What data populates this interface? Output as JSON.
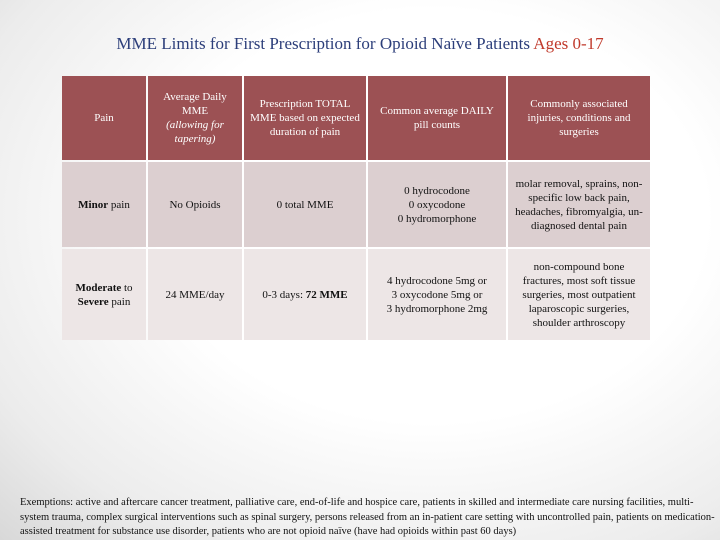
{
  "title": {
    "main": "MME Limits for First Prescription for Opioid Naïve Patients",
    "accent": "Ages 0-17"
  },
  "table": {
    "headers": [
      {
        "l1": "Pain"
      },
      {
        "l1": "Average Daily MME",
        "l2": "(allowing for tapering)"
      },
      {
        "l1": "Prescription TOTAL MME based on expected duration of pain"
      },
      {
        "l1": "Common average DAILY pill counts"
      },
      {
        "l1": "Commonly associated injuries, conditions and surgeries"
      }
    ],
    "rows": [
      {
        "pain_bold": "Minor",
        "pain_rest": " pain",
        "daily": "No Opioids",
        "total_pre": "0 total MME",
        "total_bold": "",
        "pills": "0 hydrocodone\n0 oxycodone\n0 hydromorphone",
        "conditions": "molar removal, sprains, non-specific low back pain, headaches, fibromyalgia, un-diagnosed dental pain"
      },
      {
        "pain_bold": "Moderate",
        "pain_rest": " to ",
        "pain_bold2": "Severe",
        "pain_rest2": " pain",
        "daily": "24 MME/day",
        "total_pre": "0-3 days: ",
        "total_bold": "72 MME",
        "pills": "4 hydrocodone 5mg or\n3 oxycodone 5mg or\n3 hydromorphone 2mg",
        "conditions": "non-compound bone fractures, most soft tissue surgeries, most outpatient laparoscopic surgeries, shoulder arthroscopy"
      }
    ]
  },
  "footer": "Exemptions: active and aftercare cancer treatment, palliative care, end-of-life and hospice care, patients in skilled and intermediate care nursing facilities, multi-system trauma, complex surgical interventions such as spinal surgery, persons released from an in-patient care setting with uncontrolled pain, patients on medication-assisted treatment for substance use disorder, patients who are not opioid naïve (have had opioids within past 60 days)"
}
